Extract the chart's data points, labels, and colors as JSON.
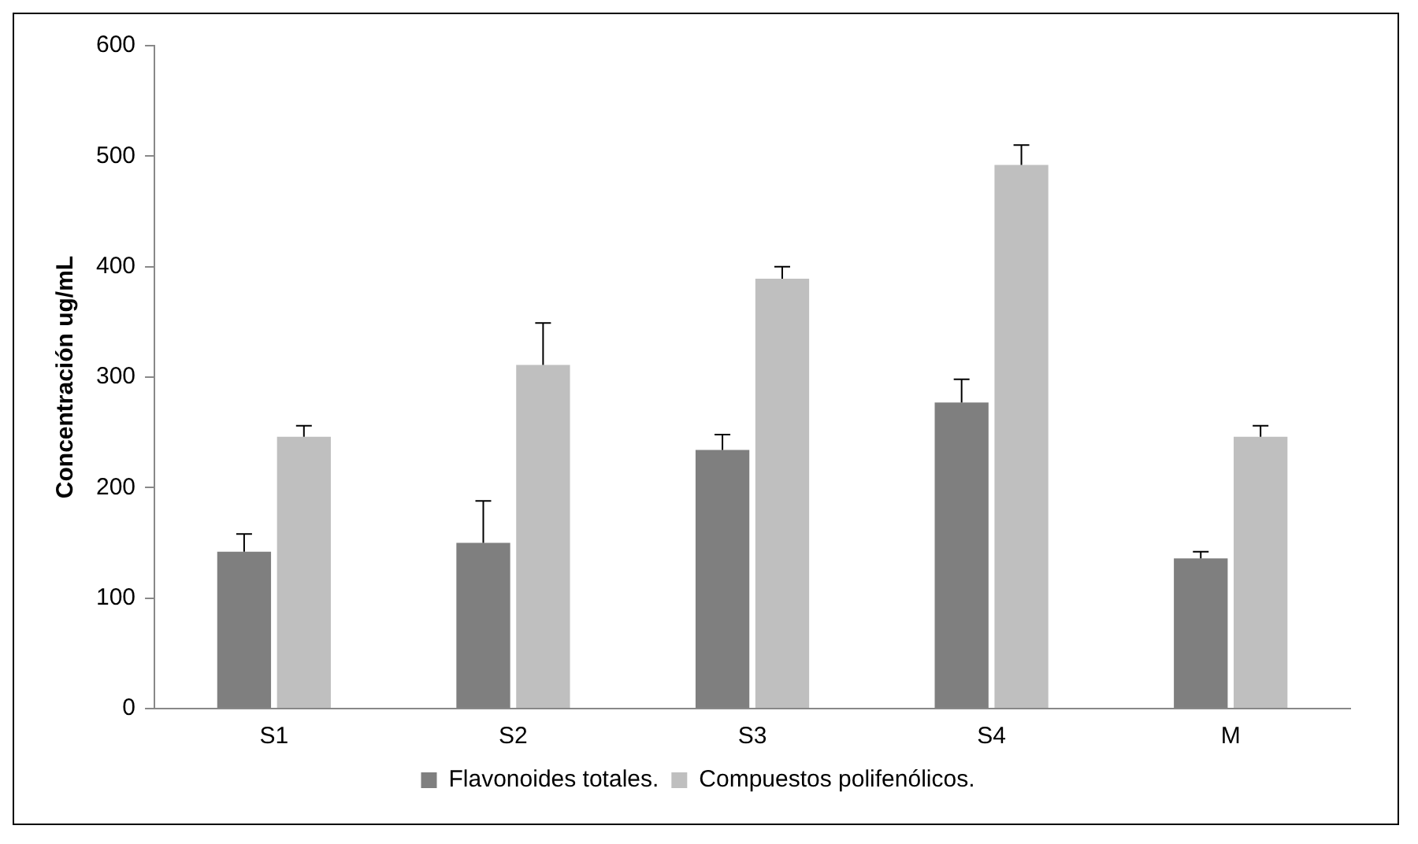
{
  "chart_data": {
    "type": "bar",
    "ylabel": "Concentración ug/mL",
    "categories": [
      "S1",
      "S2",
      "S3",
      "S4",
      "M"
    ],
    "series": [
      {
        "name": "Flavonoides totales.",
        "color": "#7f7f7f",
        "values": [
          142,
          150,
          234,
          277,
          136
        ],
        "errors": [
          [
            142,
            158
          ],
          [
            150,
            188
          ],
          [
            234,
            248
          ],
          [
            277,
            298
          ],
          [
            136,
            142
          ]
        ]
      },
      {
        "name": "Compuestos polifenólicos.",
        "color": "#bfbfbf",
        "values": [
          246,
          311,
          389,
          492,
          246
        ],
        "errors": [
          [
            246,
            256
          ],
          [
            311,
            349
          ],
          [
            389,
            400
          ],
          [
            492,
            510
          ],
          [
            246,
            256
          ]
        ]
      }
    ],
    "ylim": [
      0,
      600
    ],
    "yticks": [
      0,
      100,
      200,
      300,
      400,
      500,
      600
    ],
    "grid": false,
    "legend": "bottom"
  }
}
